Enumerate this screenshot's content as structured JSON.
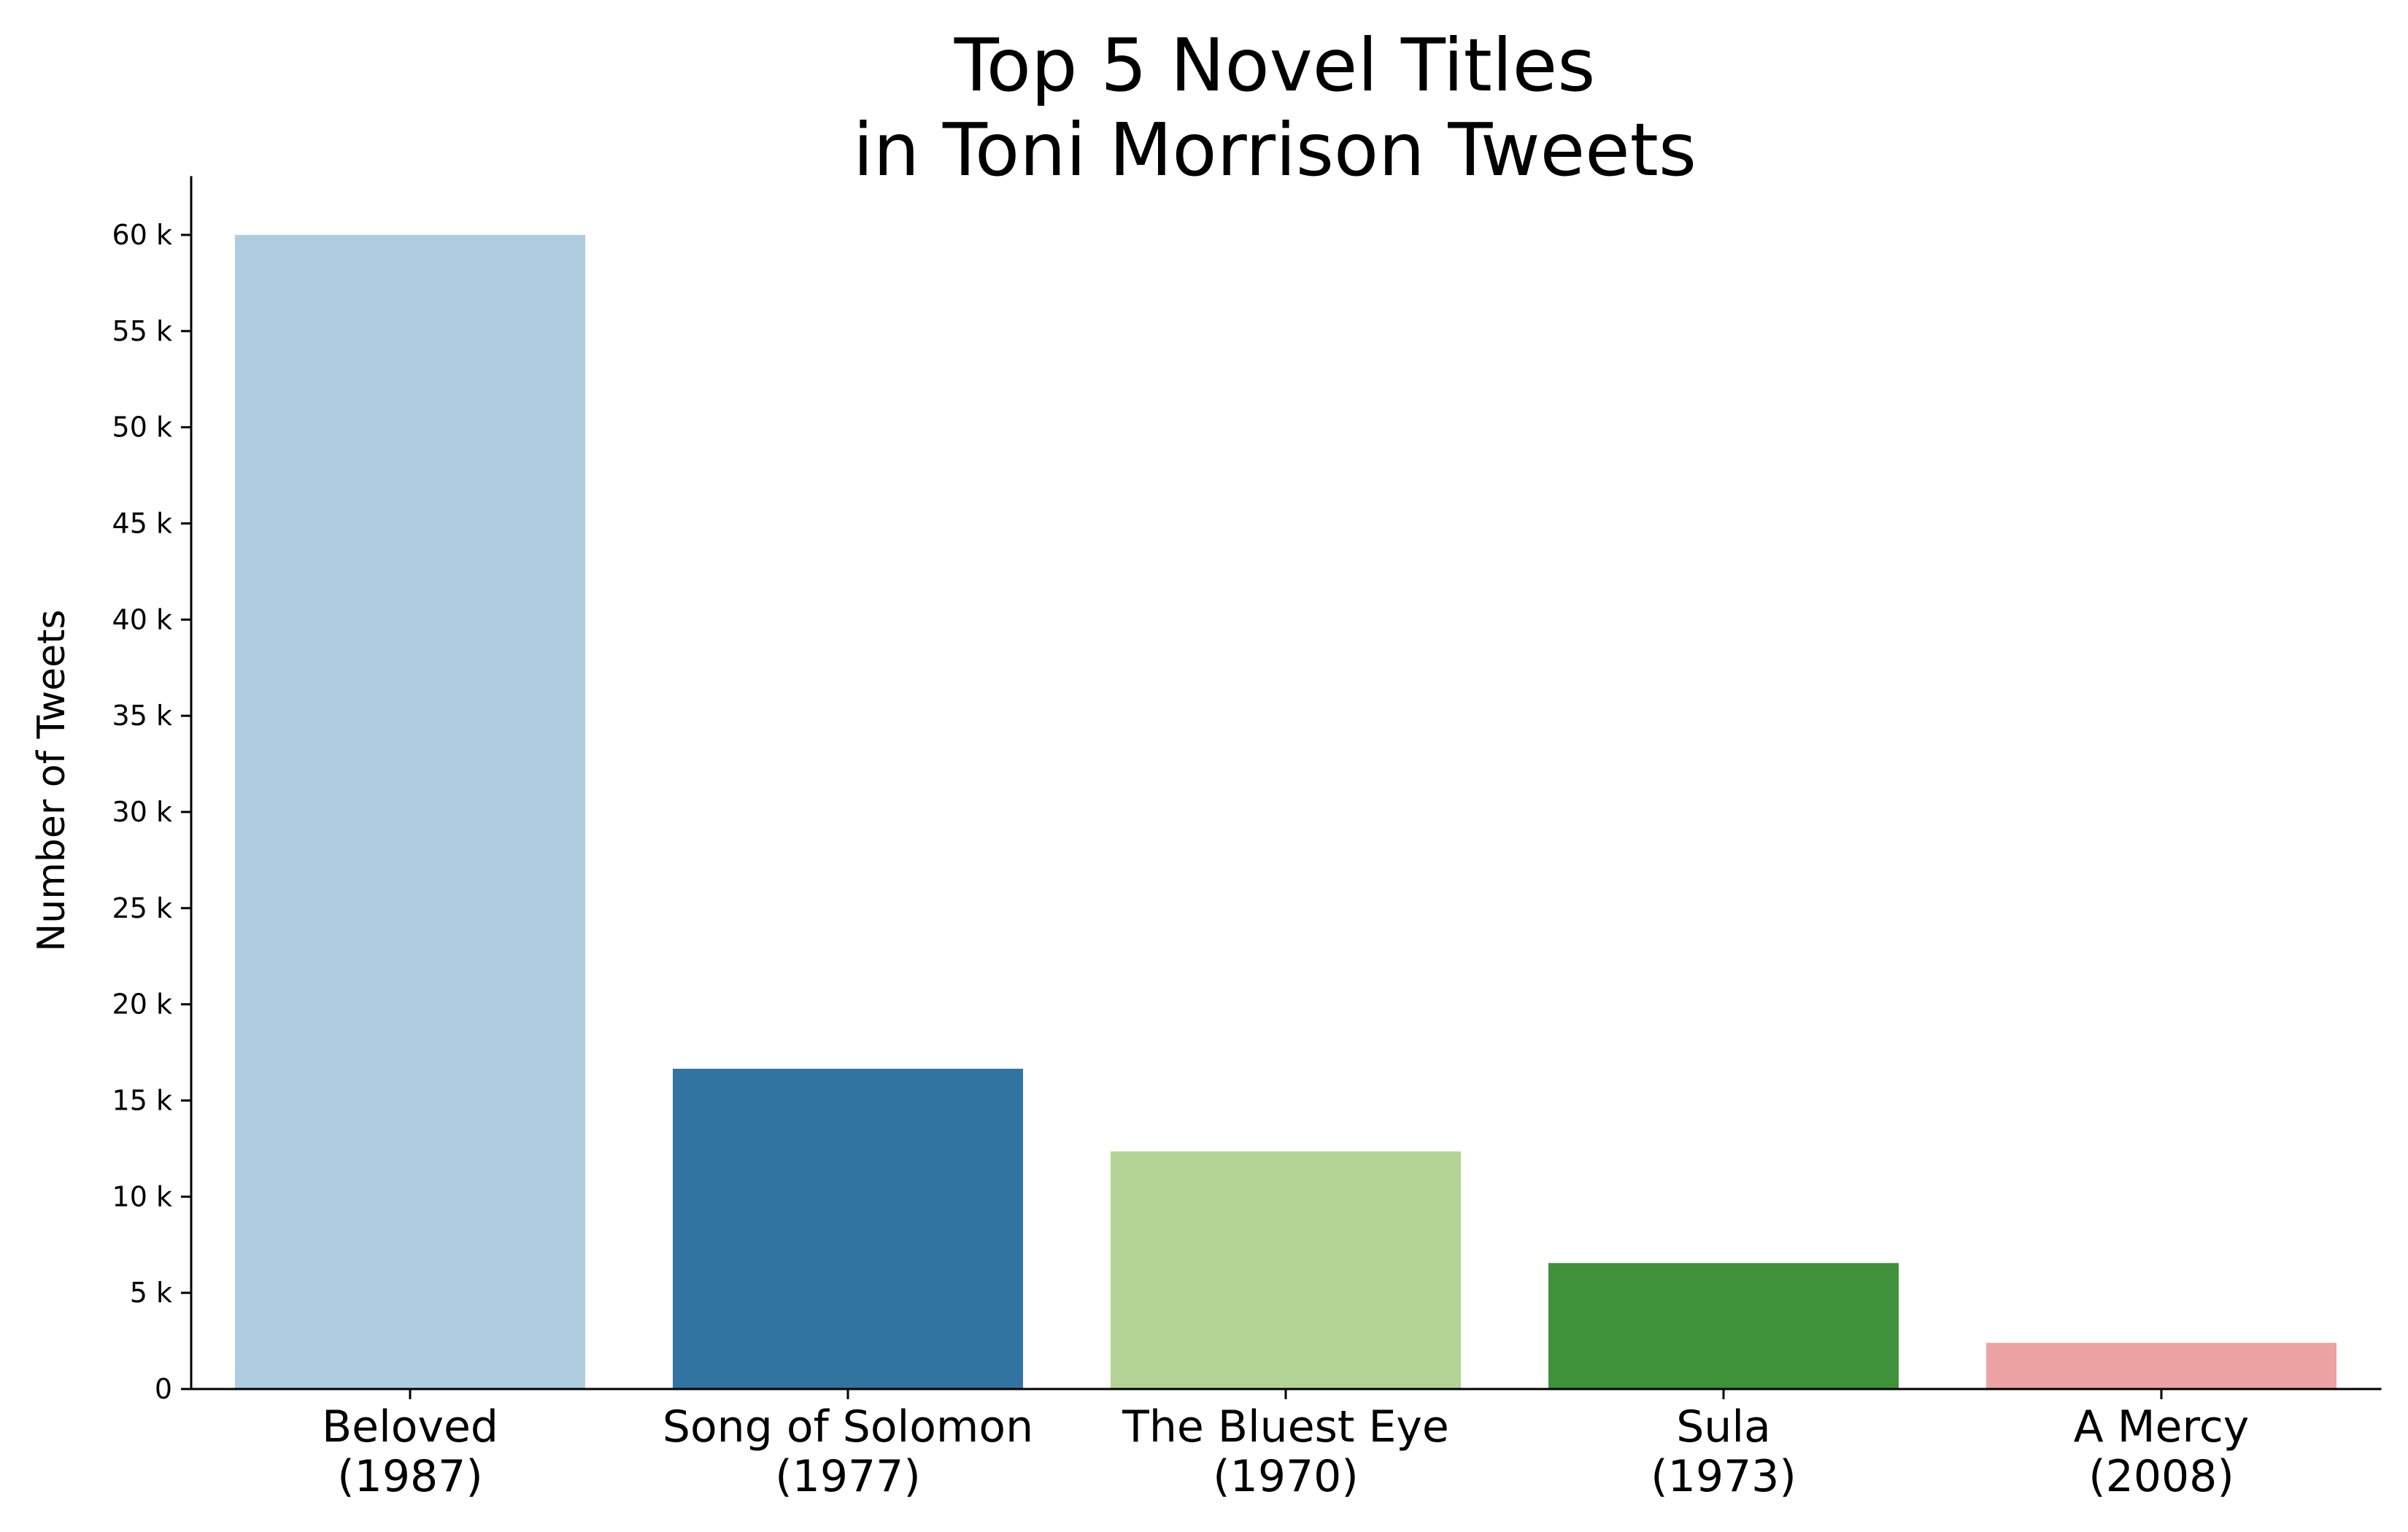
{
  "chart_data": {
    "type": "bar",
    "title": [
      "Top 5 Novel Titles",
      "in Toni Morrison Tweets"
    ],
    "xlabel": "",
    "ylabel": "Number of Tweets",
    "ylim": [
      0,
      63000
    ],
    "yticks": [
      0,
      5000,
      10000,
      15000,
      20000,
      25000,
      30000,
      35000,
      40000,
      45000,
      50000,
      55000,
      60000
    ],
    "ytick_labels": [
      "0",
      "5 k",
      "10 k",
      "15 k",
      "20 k",
      "25 k",
      "30 k",
      "35 k",
      "40 k",
      "45 k",
      "50 k",
      "55 k",
      "60 k"
    ],
    "categories": [
      [
        "Beloved",
        "(1987)"
      ],
      [
        "Song of Solomon",
        "(1977)"
      ],
      [
        "The Bluest Eye",
        "(1970)"
      ],
      [
        "Sula",
        "(1973)"
      ],
      [
        "A Mercy",
        "(2008)"
      ]
    ],
    "values": [
      60000,
      16650,
      12350,
      6550,
      2400
    ],
    "colors": [
      "#aecde0",
      "#3274a1",
      "#b3d494",
      "#3f913a",
      "#eda3a3"
    ],
    "grid": false,
    "legend": "none"
  }
}
